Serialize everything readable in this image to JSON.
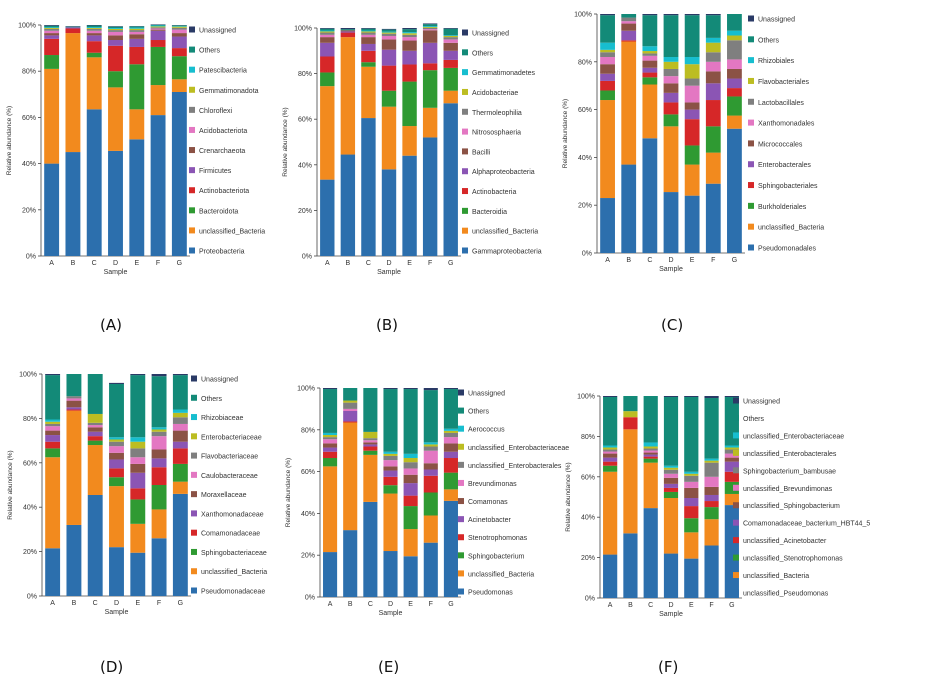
{
  "samples": [
    "A",
    "B",
    "C",
    "D",
    "E",
    "F",
    "G"
  ],
  "xlabel": "Sample",
  "ylabel": "Relative abundance (%)",
  "yticks": [
    "0%",
    "20%",
    "40%",
    "60%",
    "80%",
    "100%"
  ],
  "panel_labels": [
    "(A)",
    "(B)",
    "(C)",
    "(D)",
    "(E)",
    "(F)"
  ],
  "chart_data": [
    {
      "type": "bar",
      "stacked": true,
      "label": "(A)",
      "categories": [
        "A",
        "B",
        "C",
        "D",
        "E",
        "F",
        "G"
      ],
      "xlabel": "Sample",
      "ylabel": "Relative abundance (%)",
      "ylim": [
        0,
        100
      ],
      "series": [
        {
          "name": "Proteobacteria",
          "color": "#2c6fad",
          "values": [
            40,
            45,
            63.5,
            45.5,
            50.5,
            61,
            71
          ]
        },
        {
          "name": "unclassified_Bacteria",
          "color": "#f28a1e",
          "values": [
            41,
            51.5,
            22.5,
            27.5,
            13,
            13,
            5.5
          ]
        },
        {
          "name": "Bacteroidota",
          "color": "#2f9a32",
          "values": [
            6,
            0,
            2,
            7,
            19.5,
            16.5,
            10
          ]
        },
        {
          "name": "Actinobacteriota",
          "color": "#d62728",
          "values": [
            7,
            2,
            5,
            11,
            7.5,
            3,
            3.5
          ]
        },
        {
          "name": "Firmicutes",
          "color": "#8b55b4",
          "values": [
            1.5,
            0.5,
            2.5,
            2.5,
            3.5,
            4,
            5
          ]
        },
        {
          "name": "Crenarchaeota",
          "color": "#8b5245",
          "values": [
            1,
            0,
            1,
            2,
            2,
            0.5,
            1.5
          ]
        },
        {
          "name": "Acidobacteriota",
          "color": "#e377c2",
          "values": [
            1,
            0,
            1,
            1.5,
            1,
            0.5,
            1.5
          ]
        },
        {
          "name": "Chloroflexi",
          "color": "#7f7f7f",
          "values": [
            0.8,
            0,
            0.8,
            0.8,
            0.8,
            0.5,
            0.8
          ]
        },
        {
          "name": "Gemmatimonadota",
          "color": "#bcbd22",
          "values": [
            0.4,
            0,
            0.4,
            0.5,
            0.6,
            0.4,
            0.5
          ]
        },
        {
          "name": "Patescibacteria",
          "color": "#17becf",
          "values": [
            0.3,
            0,
            0.4,
            0.4,
            0.5,
            0.4,
            0.3
          ]
        },
        {
          "name": "Others",
          "color": "#138a78",
          "values": [
            0.7,
            0.3,
            0.7,
            0.6,
            0.5,
            0.3,
            0.3
          ]
        },
        {
          "name": "Unassigned",
          "color": "#2a3a66",
          "values": [
            0.3,
            0.2,
            0.2,
            0.2,
            0.1,
            0.2,
            0.1
          ]
        }
      ],
      "legend": "right"
    },
    {
      "type": "bar",
      "stacked": true,
      "label": "(B)",
      "categories": [
        "A",
        "B",
        "C",
        "D",
        "E",
        "F",
        "G"
      ],
      "xlabel": "Sample",
      "ylabel": "Relative abundance (%)",
      "ylim": [
        0,
        100
      ],
      "series": [
        {
          "name": "Gammaproteobacteria",
          "color": "#2c6fad",
          "values": [
            33.5,
            44.5,
            60.5,
            38,
            44,
            52,
            67
          ]
        },
        {
          "name": "unclassified_Bacteria",
          "color": "#f28a1e",
          "values": [
            41,
            51.5,
            22.5,
            27.5,
            13,
            13,
            5.5
          ]
        },
        {
          "name": "Bacteroidia",
          "color": "#2f9a32",
          "values": [
            6,
            0,
            2,
            7,
            19.5,
            16.5,
            10
          ]
        },
        {
          "name": "Actinobacteria",
          "color": "#d62728",
          "values": [
            7,
            2,
            5,
            11,
            7.5,
            3,
            3.5
          ]
        },
        {
          "name": "Alphaproteobacteria",
          "color": "#8b55b4",
          "values": [
            6,
            0.5,
            3,
            7,
            6,
            9,
            4
          ]
        },
        {
          "name": "Bacilli",
          "color": "#8b5245",
          "values": [
            2.5,
            0.5,
            3,
            4.5,
            4.5,
            5.5,
            3.5
          ]
        },
        {
          "name": "Nitrososphaeria",
          "color": "#e377c2",
          "values": [
            1,
            0,
            1,
            1.5,
            1.5,
            0.5,
            1.5
          ]
        },
        {
          "name": "Thermoleophilia",
          "color": "#7f7f7f",
          "values": [
            1,
            0,
            1,
            1,
            1,
            0.5,
            1
          ]
        },
        {
          "name": "Acidobacteriae",
          "color": "#bcbd22",
          "values": [
            0.5,
            0,
            0.5,
            0.5,
            0.7,
            0.4,
            0.5
          ]
        },
        {
          "name": "Gemmatimonadetes",
          "color": "#17becf",
          "values": [
            0.4,
            0,
            0.4,
            0.4,
            0.5,
            0.4,
            0.3
          ]
        },
        {
          "name": "Others",
          "color": "#138a78",
          "values": [
            0.8,
            0.5,
            0.8,
            0.9,
            1.3,
            0.9,
            2.9
          ]
        },
        {
          "name": "Unassigned",
          "color": "#2a3a66",
          "values": [
            0.3,
            0.5,
            0.3,
            0.3,
            0.5,
            0.3,
            0.3
          ]
        }
      ],
      "legend": "right"
    },
    {
      "type": "bar",
      "stacked": true,
      "label": "(C)",
      "categories": [
        "A",
        "B",
        "C",
        "D",
        "E",
        "F",
        "G"
      ],
      "xlabel": "Sample",
      "ylabel": "Relative abundance (%)",
      "ylim": [
        0,
        100
      ],
      "series": [
        {
          "name": "Pseudomonadales",
          "color": "#2c6fad",
          "values": [
            23,
            37,
            48,
            25.5,
            24,
            29,
            52
          ]
        },
        {
          "name": "unclassified_Bacteria",
          "color": "#f28a1e",
          "values": [
            41,
            51.5,
            22.5,
            27.5,
            13,
            13,
            5.5
          ]
        },
        {
          "name": "Burkholderiales",
          "color": "#2f9a32",
          "values": [
            4,
            0,
            3,
            5,
            8,
            11,
            8
          ]
        },
        {
          "name": "Sphingobacteriales",
          "color": "#d62728",
          "values": [
            4,
            0.5,
            2,
            5,
            11,
            11,
            3.5
          ]
        },
        {
          "name": "Enterobacterales",
          "color": "#8b55b4",
          "values": [
            3,
            4,
            2,
            4,
            4,
            7,
            4
          ]
        },
        {
          "name": "Micrococcales",
          "color": "#8b5245",
          "values": [
            4,
            3,
            3,
            4,
            3,
            5,
            4
          ]
        },
        {
          "name": "Xanthomonadales",
          "color": "#e377c2",
          "values": [
            3,
            1,
            2,
            3,
            7,
            4,
            4
          ]
        },
        {
          "name": "Lactobacillales",
          "color": "#7f7f7f",
          "values": [
            2,
            1.5,
            1,
            3,
            3,
            4,
            8
          ]
        },
        {
          "name": "Flavobacteriales",
          "color": "#bcbd22",
          "values": [
            1,
            0,
            1,
            3,
            6,
            4,
            2
          ]
        },
        {
          "name": "Rhizobiales",
          "color": "#17becf",
          "values": [
            3,
            0,
            2,
            2,
            3,
            2,
            2
          ]
        },
        {
          "name": "Others",
          "color": "#138a78",
          "values": [
            11.5,
            1.5,
            13,
            17.5,
            17.5,
            9.5,
            7
          ]
        },
        {
          "name": "Unassigned",
          "color": "#2a3a66",
          "values": [
            0.5,
            0,
            0.5,
            0.5,
            0.5,
            0.5,
            0
          ]
        }
      ],
      "legend": "right"
    },
    {
      "type": "bar",
      "stacked": true,
      "label": "(D)",
      "categories": [
        "A",
        "B",
        "C",
        "D",
        "E",
        "F",
        "G"
      ],
      "xlabel": "Sample",
      "ylabel": "Relative abundance (%)",
      "ylim": [
        0,
        100
      ],
      "series": [
        {
          "name": "Pseudomonadaceae",
          "color": "#2c6fad",
          "values": [
            21.5,
            32,
            45.5,
            22,
            19.5,
            26,
            46
          ]
        },
        {
          "name": "unclassified_Bacteria",
          "color": "#f28a1e",
          "values": [
            41,
            51.5,
            22.5,
            27.5,
            13,
            13,
            5.5
          ]
        },
        {
          "name": "Sphingobacteriaceae",
          "color": "#2f9a32",
          "values": [
            4,
            0,
            2,
            4,
            11,
            11,
            8
          ]
        },
        {
          "name": "Comamonadaceae",
          "color": "#d62728",
          "values": [
            3,
            0.5,
            2,
            4,
            5,
            8,
            7
          ]
        },
        {
          "name": "Xanthomonadaceae",
          "color": "#8b55b4",
          "values": [
            3,
            1,
            2,
            4,
            7,
            4,
            3
          ]
        },
        {
          "name": "Moraxellaceae",
          "color": "#8b5245",
          "values": [
            2,
            3,
            2,
            3,
            4,
            4,
            5
          ]
        },
        {
          "name": "Caulobacteraceae",
          "color": "#e377c2",
          "values": [
            2,
            1,
            1,
            3,
            3,
            6,
            3
          ]
        },
        {
          "name": "Flavobacteriaceae",
          "color": "#7f7f7f",
          "values": [
            1,
            1,
            1,
            2,
            4,
            2,
            3
          ]
        },
        {
          "name": "Enterobacteriaceae",
          "color": "#bcbd22",
          "values": [
            1,
            0,
            4,
            1,
            3,
            1,
            2
          ]
        },
        {
          "name": "Rhizobiaceae",
          "color": "#17becf",
          "values": [
            1,
            0,
            0,
            1,
            2,
            1,
            1.5
          ]
        },
        {
          "name": "Others",
          "color": "#138a78",
          "values": [
            20,
            10,
            18,
            24,
            28,
            23,
            15.5
          ]
        },
        {
          "name": "Unassigned",
          "color": "#2a3a66",
          "values": [
            0.5,
            0,
            0,
            0.5,
            0.5,
            1,
            0.5
          ]
        }
      ],
      "legend": "right"
    },
    {
      "type": "bar",
      "stacked": true,
      "label": "(E)",
      "categories": [
        "A",
        "B",
        "C",
        "D",
        "E",
        "F",
        "G"
      ],
      "xlabel": "Sample",
      "ylabel": "Relative abundance (%)",
      "ylim": [
        0,
        100
      ],
      "series": [
        {
          "name": "Pseudomonas",
          "color": "#2c6fad",
          "values": [
            21.5,
            32,
            45.5,
            22,
            19.5,
            26,
            46
          ]
        },
        {
          "name": "unclassified_Bacteria",
          "color": "#f28a1e",
          "values": [
            41,
            51.5,
            22.5,
            27.5,
            13,
            13,
            5.5
          ]
        },
        {
          "name": "Sphingobacterium",
          "color": "#2f9a32",
          "values": [
            4,
            0,
            2,
            4,
            11,
            11,
            8
          ]
        },
        {
          "name": "Stenotrophomonas",
          "color": "#d62728",
          "values": [
            3,
            0.5,
            2,
            4,
            5,
            8,
            7
          ]
        },
        {
          "name": "Acinetobacter",
          "color": "#8b55b4",
          "values": [
            2,
            5,
            1,
            3,
            6,
            3,
            3
          ]
        },
        {
          "name": "Comamonas",
          "color": "#8b5245",
          "values": [
            2,
            0,
            1,
            2,
            4,
            3,
            4
          ]
        },
        {
          "name": "Brevundimonas",
          "color": "#e377c2",
          "values": [
            2,
            1,
            1,
            3,
            3,
            6,
            3
          ]
        },
        {
          "name": "unclassified_Enterobacterales",
          "color": "#7f7f7f",
          "values": [
            1,
            3,
            1,
            2,
            3,
            2,
            2
          ]
        },
        {
          "name": "unclassified_Enterobacteriaceae",
          "color": "#bcbd22",
          "values": [
            1,
            1,
            3,
            1,
            2,
            1,
            1
          ]
        },
        {
          "name": "Aerococcus",
          "color": "#17becf",
          "values": [
            1,
            0,
            0,
            1,
            2,
            1,
            1
          ]
        },
        {
          "name": "Others",
          "color": "#138a78",
          "values": [
            21,
            6,
            21,
            30,
            31,
            25,
            19
          ]
        },
        {
          "name": "Unassigned",
          "color": "#2a3a66",
          "values": [
            0.5,
            0,
            0,
            0.5,
            0.5,
            1,
            0.5
          ]
        }
      ],
      "legend": "right"
    },
    {
      "type": "bar",
      "stacked": true,
      "label": "(F)",
      "categories": [
        "A",
        "B",
        "C",
        "D",
        "E",
        "F",
        "G"
      ],
      "xlabel": "Sample",
      "ylabel": "Relative abundance (%)",
      "ylim": [
        0,
        100
      ],
      "series": [
        {
          "name": "unclassified_Pseudomonas",
          "color": "#2c6fad",
          "values": [
            21.5,
            32,
            44.5,
            22,
            19.5,
            26,
            46
          ]
        },
        {
          "name": "unclassified_Bacteria",
          "color": "#f28a1e",
          "values": [
            41,
            51.5,
            22.5,
            27.5,
            13,
            13,
            5.5
          ]
        },
        {
          "name": "unclassified_Stenotrophomonas",
          "color": "#2f9a32",
          "values": [
            3,
            0,
            2,
            3,
            7,
            6,
            6
          ]
        },
        {
          "name": "unclassified_Acinetobacter",
          "color": "#d62728",
          "values": [
            2,
            6,
            1,
            2,
            6,
            3,
            5
          ]
        },
        {
          "name": "Comamonadaceae_bacterium_HBT44_5",
          "color": "#8b55b4",
          "values": [
            2,
            0,
            1,
            2,
            4,
            3,
            5
          ]
        },
        {
          "name": "unclassified_Sphingobacterium",
          "color": "#8b5245",
          "values": [
            2,
            0,
            1,
            3,
            5,
            4,
            2
          ]
        },
        {
          "name": "unclassified_Brevundimonas",
          "color": "#e377c2",
          "values": [
            1,
            0,
            1,
            2,
            3,
            5,
            2
          ]
        },
        {
          "name": "Sphingobacterium_bambusae",
          "color": "#7f7f7f",
          "values": [
            1,
            0,
            1,
            2,
            3,
            7,
            2
          ]
        },
        {
          "name": "unclassified_Enterobacterales",
          "color": "#bcbd22",
          "values": [
            1,
            3,
            1,
            1,
            1,
            1,
            1
          ]
        },
        {
          "name": "unclassified_Enterobacteriaceae",
          "color": "#17becf",
          "values": [
            1,
            0,
            2,
            1,
            1,
            1,
            1
          ]
        },
        {
          "name": "Others",
          "color": "#138a78",
          "values": [
            24,
            7.5,
            23,
            34,
            37,
            30,
            24
          ]
        },
        {
          "name": "Unassigned",
          "color": "#2a3a66",
          "values": [
            0.5,
            0,
            0,
            0.5,
            0.5,
            1,
            0.5
          ]
        }
      ],
      "legend": "right"
    }
  ]
}
